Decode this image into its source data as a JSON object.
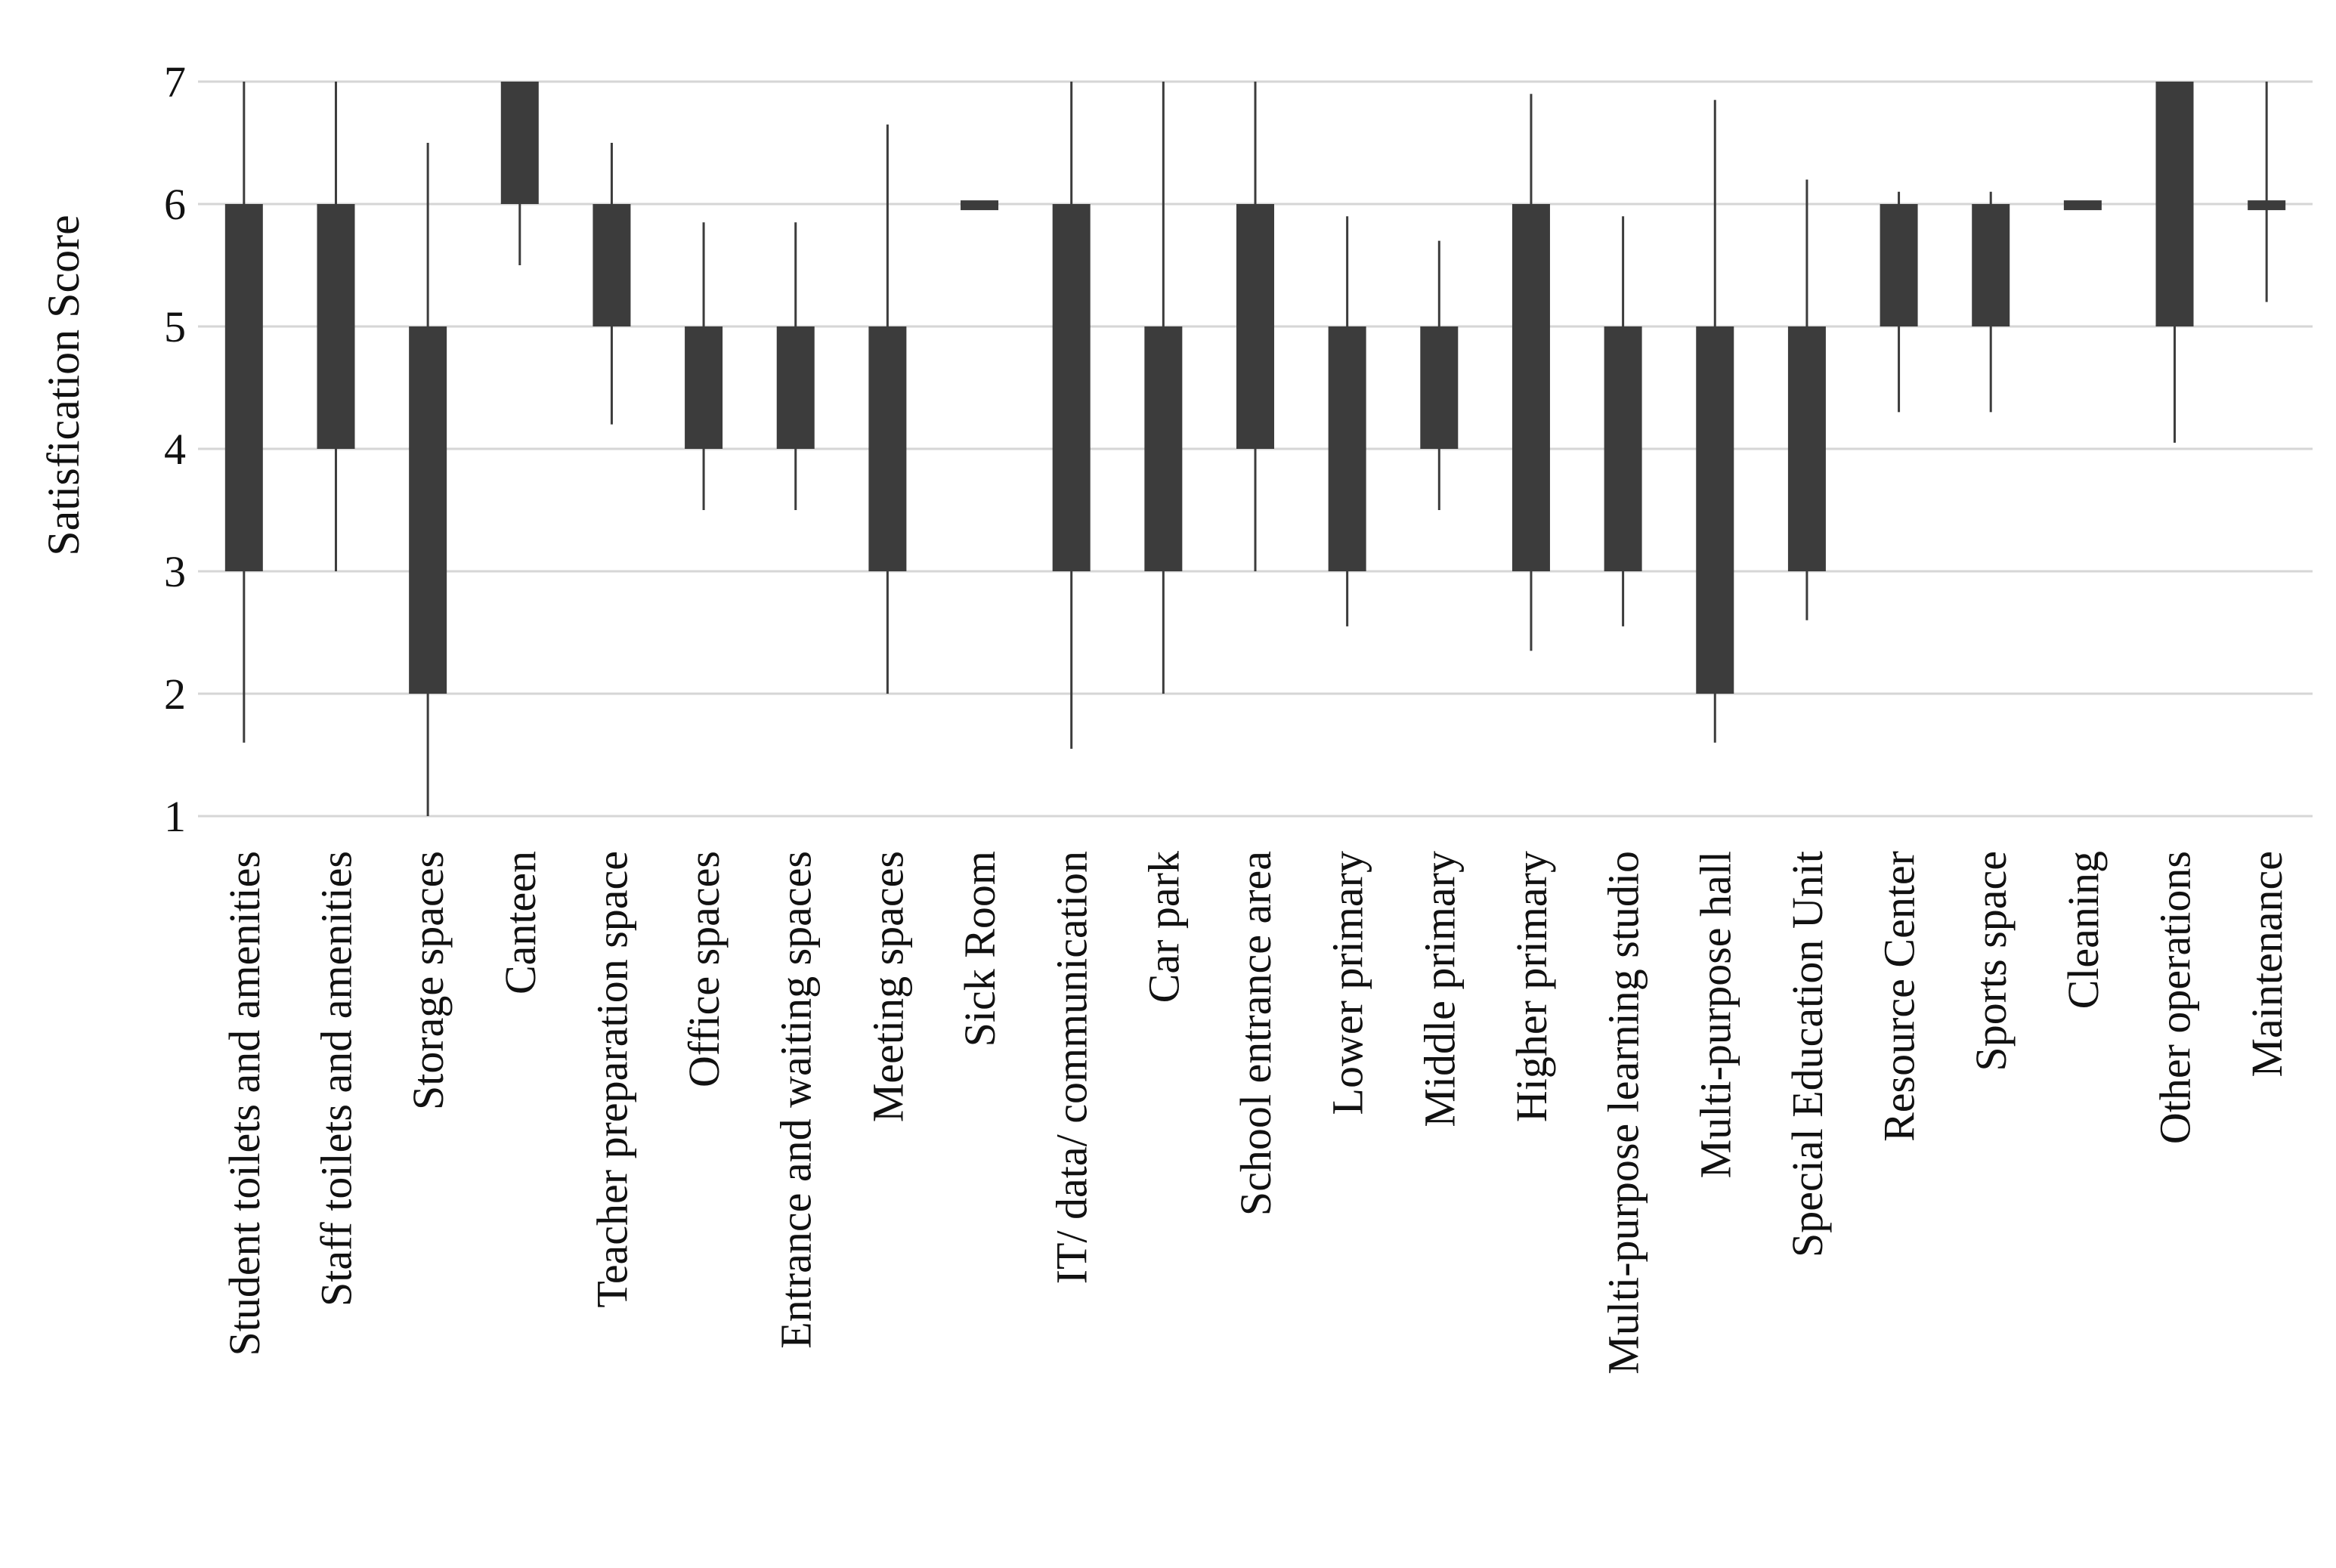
{
  "chart_data": {
    "type": "boxplot",
    "title": "",
    "xlabel": "",
    "ylabel": "Satisfication Score",
    "ylim": [
      1,
      7
    ],
    "yticks": [
      1,
      2,
      3,
      4,
      5,
      6,
      7
    ],
    "grid": true,
    "colors": {
      "box": "#3c3c3c",
      "grid": "#d6d6d6",
      "text": "#111111"
    },
    "categories": [
      "Student toilets and amenities",
      "Staff toilets and amenities",
      "Storage spaces",
      "Canteen",
      "Teacher preparation space",
      "Office spaces",
      "Entrance and waiting spaces",
      "Meeting spaces",
      "Sick Room",
      "IT/ data/ communication",
      "Car park",
      "School entrance area",
      "Lower primary",
      "Middle primary",
      "Higher primary",
      "Multi-purpose learning studio",
      "Multi-purpose hall",
      "Special Education Unit",
      "Resource Center",
      "Sports space",
      "Cleaning",
      "Other operations",
      "Maintenance"
    ],
    "series": [
      {
        "name": "whisker_min",
        "values": [
          1.6,
          3.0,
          1.0,
          5.5,
          4.2,
          3.5,
          3.5,
          2.0,
          6.0,
          1.55,
          2.0,
          3.0,
          2.55,
          3.5,
          2.35,
          2.55,
          1.6,
          2.6,
          4.3,
          4.3,
          6.0,
          4.05,
          5.2
        ]
      },
      {
        "name": "q1",
        "values": [
          3,
          4,
          2,
          6,
          5,
          4,
          4,
          3,
          5.95,
          3,
          3,
          4,
          3,
          4,
          3,
          3,
          2,
          3,
          5,
          5,
          5.95,
          5,
          5.95
        ]
      },
      {
        "name": "q3",
        "values": [
          6,
          6,
          5,
          7,
          6,
          5,
          5,
          5,
          6.03,
          6,
          5,
          6,
          5,
          5,
          6,
          5,
          5,
          5,
          6,
          6,
          6.03,
          7,
          6.03
        ]
      },
      {
        "name": "whisker_max",
        "values": [
          7.0,
          7.0,
          6.5,
          7.0,
          6.5,
          5.85,
          5.85,
          6.65,
          6.0,
          7.0,
          7.0,
          7.0,
          5.9,
          5.7,
          6.9,
          5.9,
          6.85,
          6.2,
          6.1,
          6.1,
          6.0,
          7.0,
          7.0
        ]
      }
    ]
  }
}
